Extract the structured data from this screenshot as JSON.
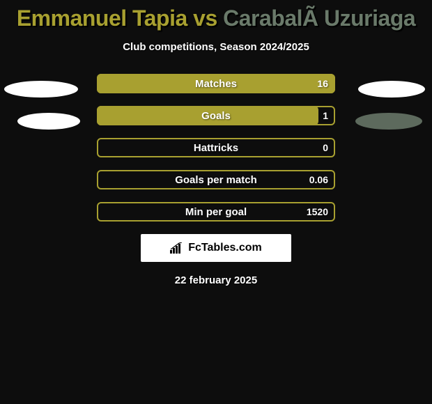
{
  "title": {
    "player1": "Emmanuel Tapia",
    "vs": " vs ",
    "player2": "CarabalÃ Uzuriaga",
    "player1_color": "#a8a030",
    "player2_color": "#6a7a6a"
  },
  "subtitle": "Club competitions, Season 2024/2025",
  "ellipse_right_2_color": "#5d6a5d",
  "bars": {
    "fill_color": "#a8a030",
    "outline_color": "#a8a030",
    "items": [
      {
        "label": "Matches",
        "value": "16",
        "fill_pct": 100
      },
      {
        "label": "Goals",
        "value": "1",
        "fill_pct": 93
      },
      {
        "label": "Hattricks",
        "value": "0",
        "fill_pct": 0
      },
      {
        "label": "Goals per match",
        "value": "0.06",
        "fill_pct": 0
      },
      {
        "label": "Min per goal",
        "value": "1520",
        "fill_pct": 0
      }
    ]
  },
  "logo": {
    "text": "FcTables.com",
    "icon_color": "#000000"
  },
  "date": "22 february 2025",
  "background_color": "#0d0d0d"
}
